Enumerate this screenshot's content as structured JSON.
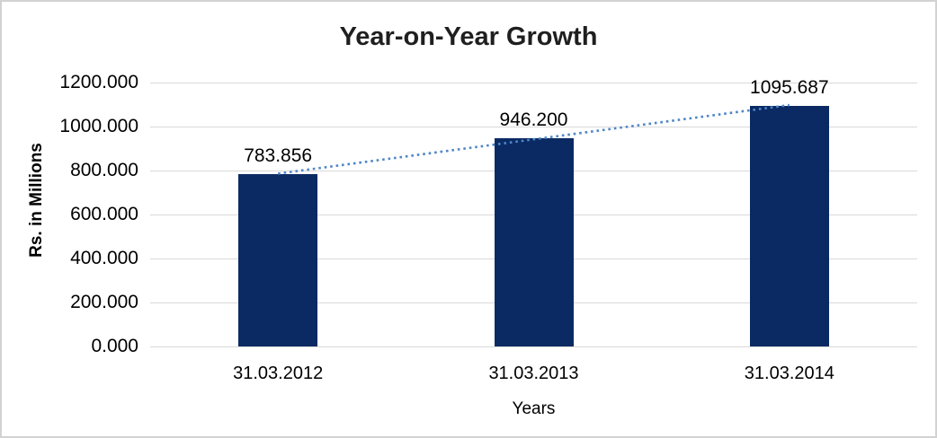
{
  "chart_data": {
    "type": "bar",
    "title": "Year-on-Year Growth",
    "xlabel": "Years",
    "ylabel": "Rs. in Millions",
    "categories": [
      "31.03.2012",
      "31.03.2013",
      "31.03.2014"
    ],
    "values": [
      783.856,
      946.2,
      1095.687
    ],
    "value_labels": [
      "783.856",
      "946.200",
      "1095.687"
    ],
    "ylim": [
      0,
      1200
    ],
    "ytick_step": 200,
    "ytick_labels": [
      "0.000",
      "200.000",
      "400.000",
      "600.000",
      "800.000",
      "1000.000",
      "1200.000"
    ],
    "grid": true,
    "legend_position": "none",
    "trendline": {
      "type": "linear",
      "style": "dotted"
    },
    "colors": {
      "bar": "#0b2a63",
      "trendline": "#4e86c8",
      "gridline": "#d9d9d9",
      "text": "#000000",
      "title_text": "#1f1f1f",
      "border": "#d2d2d2",
      "background": "#ffffff"
    }
  }
}
